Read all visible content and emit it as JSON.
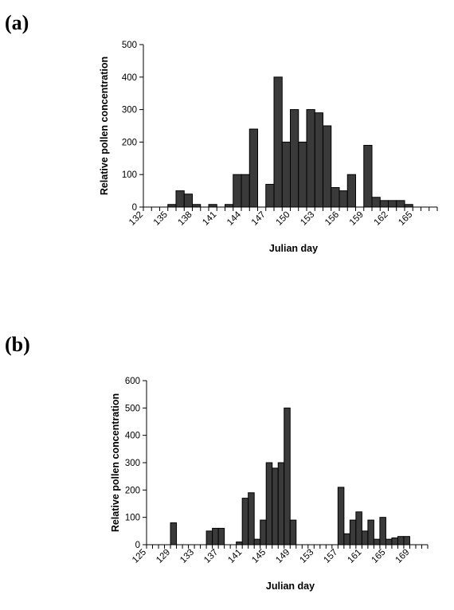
{
  "panels": [
    {
      "label": "(a)"
    },
    {
      "label": "(b)"
    }
  ],
  "colors": {
    "bar": "#3a3a3a",
    "axis": "#000000"
  },
  "chart_data": [
    {
      "type": "bar",
      "xlabel": "Julian day",
      "ylabel": "Relative pollen concentration",
      "ylim": [
        0,
        500
      ],
      "yticks": [
        0,
        100,
        200,
        300,
        400,
        500
      ],
      "xrange": [
        132,
        168
      ],
      "xtick_labels": [
        "132",
        "135",
        "138",
        "141",
        "144",
        "147",
        "150",
        "153",
        "156",
        "159",
        "162",
        "165"
      ],
      "x": [
        132,
        133,
        134,
        135,
        136,
        137,
        138,
        139,
        140,
        141,
        142,
        143,
        144,
        145,
        146,
        147,
        148,
        149,
        150,
        151,
        152,
        153,
        154,
        155,
        156,
        157,
        158,
        159,
        160,
        161,
        162,
        163,
        164,
        165,
        166,
        167
      ],
      "values": [
        0,
        0,
        0,
        8,
        50,
        40,
        8,
        0,
        8,
        0,
        8,
        100,
        100,
        240,
        0,
        70,
        400,
        200,
        300,
        200,
        300,
        290,
        250,
        60,
        50,
        100,
        0,
        190,
        30,
        20,
        20,
        20,
        8,
        0,
        0,
        0
      ]
    },
    {
      "type": "bar",
      "xlabel": "Julian day",
      "ylabel": "Relative pollen concentration",
      "ylim": [
        0,
        600
      ],
      "yticks": [
        0,
        100,
        200,
        300,
        400,
        500,
        600
      ],
      "xrange": [
        125,
        172
      ],
      "xtick_labels": [
        "125",
        "129",
        "133",
        "137",
        "141",
        "145",
        "149",
        "153",
        "157",
        "161",
        "165",
        "169"
      ],
      "x": [
        125,
        126,
        127,
        128,
        129,
        130,
        131,
        132,
        133,
        134,
        135,
        136,
        137,
        138,
        139,
        140,
        141,
        142,
        143,
        144,
        145,
        146,
        147,
        148,
        149,
        150,
        151,
        152,
        153,
        154,
        155,
        156,
        157,
        158,
        159,
        160,
        161,
        162,
        163,
        164,
        165,
        166,
        167,
        168,
        169,
        170,
        171
      ],
      "values": [
        0,
        0,
        0,
        0,
        80,
        0,
        0,
        0,
        0,
        0,
        50,
        60,
        60,
        0,
        0,
        10,
        170,
        190,
        20,
        90,
        300,
        280,
        300,
        500,
        90,
        0,
        0,
        0,
        0,
        0,
        0,
        0,
        210,
        40,
        90,
        120,
        50,
        90,
        20,
        100,
        20,
        25,
        30,
        30,
        0,
        0,
        0
      ]
    }
  ]
}
